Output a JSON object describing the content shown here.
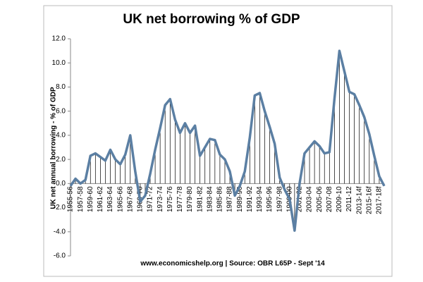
{
  "chart_data": {
    "type": "line",
    "title": "UK net borrowing % of GDP",
    "y_label": "UK net annual borrowing - % of GDP",
    "footer": "www.economicshelp.org | Source: OBR L65P - Sept '14",
    "categories": [
      "1955-56",
      null,
      "1957-58",
      null,
      "1959-60",
      null,
      "1961-62",
      null,
      "1963-64",
      null,
      "1965-66",
      null,
      "1967-68",
      null,
      "1969-70",
      null,
      "1971-72",
      null,
      "1973-74",
      null,
      "1975-76",
      null,
      "1977-78",
      null,
      "1979-80",
      null,
      "1981-82",
      null,
      "1983-84",
      null,
      "1985-86",
      null,
      "1987-88",
      null,
      "1989-90",
      null,
      "1991-92",
      null,
      "1993-94",
      null,
      "1995-96",
      null,
      "1997-98",
      null,
      "1999-00",
      null,
      "2001-02",
      null,
      "2003-04",
      null,
      "2005-06",
      null,
      "2007-08",
      null,
      "2009-10",
      null,
      "2011-12",
      null,
      "2013-14f",
      null,
      "2015-16f",
      null,
      "2017-18f",
      null
    ],
    "series": [
      {
        "name": "Net borrowing",
        "color": "#5b7fa3",
        "values": [
          -0.2,
          0.4,
          0.0,
          0.3,
          2.3,
          2.5,
          2.2,
          1.9,
          2.8,
          2.0,
          1.6,
          2.4,
          4.0,
          1.0,
          -1.5,
          -1.0,
          0.8,
          2.8,
          4.6,
          6.5,
          7.0,
          5.3,
          4.2,
          5.0,
          4.2,
          4.8,
          2.3,
          3.0,
          3.7,
          3.6,
          2.4,
          2.0,
          1.0,
          -1.0,
          -0.2,
          1.0,
          3.8,
          7.3,
          7.5,
          6.0,
          4.7,
          3.3,
          0.5,
          -0.5,
          -1.3,
          -3.9,
          0.0,
          2.5,
          3.0,
          3.5,
          3.1,
          2.5,
          2.6,
          7.0,
          11.0,
          9.3,
          7.6,
          7.4,
          6.5,
          5.5,
          4.1,
          2.3,
          0.6,
          -0.2
        ]
      }
    ],
    "ylim": [
      -6,
      12
    ],
    "yticks": [
      {
        "value": -6,
        "label": "-6.0"
      },
      {
        "value": -4,
        "label": "-4.0"
      },
      {
        "value": -2,
        "label": "-2.0"
      },
      {
        "value": 0,
        "label": "0.0"
      },
      {
        "value": 2,
        "label": "2.0"
      },
      {
        "value": 4,
        "label": "4.0"
      },
      {
        "value": 6,
        "label": "6.0"
      },
      {
        "value": 8,
        "label": "8.0"
      },
      {
        "value": 10,
        "label": "10.0"
      },
      {
        "value": 12,
        "label": "12.0"
      }
    ],
    "drop_lines": true
  }
}
